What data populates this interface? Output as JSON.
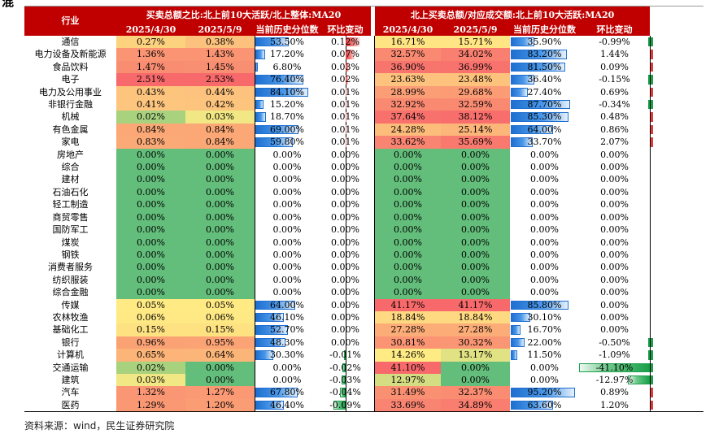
{
  "cut_text": "混",
  "headers": {
    "col_industry": "行业",
    "group_left": "买卖总额之比:北上前10大活跃/北上整体:MA20",
    "group_right": "北上买卖总额/对应成交额:北上前10大活跃:MA20",
    "sub": [
      "2025/4/30",
      "2025/5/9",
      "当前历史分位数",
      "环比变动"
    ]
  },
  "colors": {
    "header_bg": "#c00000",
    "green": "#63be7b",
    "yellow": "#ffeb84",
    "red": "#f8696b",
    "bar_blue": "#1e6fd0"
  },
  "rows": [
    {
      "name": "通信",
      "a1": "0.27%",
      "a2": "0.38%",
      "a3": "53.50%",
      "a3v": 53.5,
      "a4": "0.12%",
      "a4v": 0.12,
      "b1": "16.71%",
      "b2": "15.71%",
      "b3": "35.90%",
      "b3v": 35.9,
      "b4": "-0.99%",
      "b4v": -0.99,
      "ca1": "#fdd27f",
      "ca2": "#fcc27d",
      "cb1": "#ffe483",
      "cb2": "#ffe583"
    },
    {
      "name": "电力设备及新能源",
      "a1": "1.36%",
      "a2": "1.43%",
      "a3": "17.20%",
      "a3v": 17.2,
      "a4": "0.07%",
      "a4v": 0.07,
      "b1": "32.57%",
      "b2": "34.02%",
      "b3": "83.20%",
      "b3v": 83.2,
      "b4": "1.44%",
      "b4v": 1.44,
      "ca1": "#fa9473",
      "ca2": "#fa9473",
      "cb1": "#f98a71",
      "cb2": "#f98070"
    },
    {
      "name": "食品饮料",
      "a1": "1.47%",
      "a2": "1.45%",
      "a3": "6.80%",
      "a3v": 6.8,
      "a4": "0.03%",
      "a4v": 0.03,
      "b1": "36.90%",
      "b2": "36.99%",
      "b3": "81.50%",
      "b3v": 81.5,
      "b4": "0.09%",
      "b4v": 0.09,
      "ca1": "#f98d72",
      "ca2": "#f98f72",
      "cb1": "#f8756d",
      "cb2": "#f8736d"
    },
    {
      "name": "电子",
      "a1": "2.51%",
      "a2": "2.53%",
      "a3": "76.40%",
      "a3v": 76.4,
      "a4": "0.02%",
      "a4v": 0.02,
      "b1": "23.63%",
      "b2": "23.48%",
      "b3": "36.40%",
      "b3v": 36.4,
      "b4": "-0.15%",
      "b4v": -0.15,
      "ca1": "#f8696b",
      "ca2": "#f8696b",
      "cb1": "#fdc27d",
      "cb2": "#fdc37d"
    },
    {
      "name": "电力及公用事业",
      "a1": "0.43%",
      "a2": "0.44%",
      "a3": "84.10%",
      "a3v": 84.1,
      "a4": "0.01%",
      "a4v": 0.01,
      "b1": "28.99%",
      "b2": "29.68%",
      "b3": "27.40%",
      "b3v": 27.4,
      "b4": "0.69%",
      "b4v": 0.69,
      "ca1": "#fdc47d",
      "ca2": "#fdc27d",
      "cb1": "#fb9e75",
      "cb2": "#fb9c75"
    },
    {
      "name": "非银行金融",
      "a1": "0.41%",
      "a2": "0.42%",
      "a3": "15.20%",
      "a3v": 15.2,
      "a4": "0.01%",
      "a4v": 0.01,
      "b1": "32.92%",
      "b2": "32.59%",
      "b3": "87.70%",
      "b3v": 87.7,
      "b4": "-0.34%",
      "b4v": -0.34,
      "ca1": "#fdc57e",
      "ca2": "#fdc47d",
      "cb1": "#f98971",
      "cb2": "#f98a71"
    },
    {
      "name": "机械",
      "a1": "0.02%",
      "a2": "0.03%",
      "a3": "18.70%",
      "a3v": 18.7,
      "a4": "0.01%",
      "a4v": 0.01,
      "b1": "37.64%",
      "b2": "38.12%",
      "b3": "85.30%",
      "b3v": 85.3,
      "b4": "0.48%",
      "b4v": 0.48,
      "ca1": "#a9d27f",
      "ca2": "#f1e784",
      "cb1": "#f8716c",
      "cb2": "#f86e6c"
    },
    {
      "name": "有色金属",
      "a1": "0.84%",
      "a2": "0.84%",
      "a3": "69.00%",
      "a3v": 69.0,
      "a4": "0.01%",
      "a4v": 0.01,
      "b1": "24.28%",
      "b2": "25.14%",
      "b3": "64.00%",
      "b3v": 64.0,
      "b4": "0.86%",
      "b4v": 0.86,
      "ca1": "#fba876",
      "ca2": "#fba876",
      "cb1": "#fcbd7b",
      "cb2": "#fcb67a"
    },
    {
      "name": "家电",
      "a1": "0.83%",
      "a2": "0.84%",
      "a3": "59.80%",
      "a3v": 59.8,
      "a4": "0.01%",
      "a4v": 0.01,
      "b1": "33.62%",
      "b2": "35.69%",
      "b3": "33.70%",
      "b3v": 33.7,
      "b4": "2.07%",
      "b4v": 2.07,
      "ca1": "#fba976",
      "ca2": "#fba876",
      "cb1": "#f98471",
      "cb2": "#f9796e"
    },
    {
      "name": "房地产",
      "a1": "0.00%",
      "a2": "0.00%",
      "a3": "0.00%",
      "a3v": 0,
      "a4": "0.00%",
      "a4v": 0,
      "b1": "0.00%",
      "b2": "0.00%",
      "b3": "0.00%",
      "b3v": 0,
      "b4": "0.00%",
      "b4v": 0,
      "ca1": "#63be7b",
      "ca2": "#63be7b",
      "cb1": "#63be7b",
      "cb2": "#63be7b"
    },
    {
      "name": "综合",
      "a1": "0.00%",
      "a2": "0.00%",
      "a3": "0.00%",
      "a3v": 0,
      "a4": "0.00%",
      "a4v": 0,
      "b1": "0.00%",
      "b2": "0.00%",
      "b3": "0.00%",
      "b3v": 0,
      "b4": "0.00%",
      "b4v": 0,
      "ca1": "#63be7b",
      "ca2": "#63be7b",
      "cb1": "#63be7b",
      "cb2": "#63be7b"
    },
    {
      "name": "建材",
      "a1": "0.00%",
      "a2": "0.00%",
      "a3": "0.00%",
      "a3v": 0,
      "a4": "0.00%",
      "a4v": 0,
      "b1": "0.00%",
      "b2": "0.00%",
      "b3": "0.00%",
      "b3v": 0,
      "b4": "0.00%",
      "b4v": 0,
      "ca1": "#63be7b",
      "ca2": "#63be7b",
      "cb1": "#63be7b",
      "cb2": "#63be7b"
    },
    {
      "name": "石油石化",
      "a1": "0.00%",
      "a2": "0.00%",
      "a3": "0.00%",
      "a3v": 0,
      "a4": "0.00%",
      "a4v": 0,
      "b1": "0.00%",
      "b2": "0.00%",
      "b3": "0.00%",
      "b3v": 0,
      "b4": "0.00%",
      "b4v": 0,
      "ca1": "#63be7b",
      "ca2": "#63be7b",
      "cb1": "#63be7b",
      "cb2": "#63be7b"
    },
    {
      "name": "轻工制造",
      "a1": "0.00%",
      "a2": "0.00%",
      "a3": "0.00%",
      "a3v": 0,
      "a4": "0.00%",
      "a4v": 0,
      "b1": "0.00%",
      "b2": "0.00%",
      "b3": "0.00%",
      "b3v": 0,
      "b4": "0.00%",
      "b4v": 0,
      "ca1": "#63be7b",
      "ca2": "#63be7b",
      "cb1": "#63be7b",
      "cb2": "#63be7b"
    },
    {
      "name": "商贸零售",
      "a1": "0.00%",
      "a2": "0.00%",
      "a3": "0.00%",
      "a3v": 0,
      "a4": "0.00%",
      "a4v": 0,
      "b1": "0.00%",
      "b2": "0.00%",
      "b3": "0.00%",
      "b3v": 0,
      "b4": "0.00%",
      "b4v": 0,
      "ca1": "#63be7b",
      "ca2": "#63be7b",
      "cb1": "#63be7b",
      "cb2": "#63be7b"
    },
    {
      "name": "国防军工",
      "a1": "0.00%",
      "a2": "0.00%",
      "a3": "0.00%",
      "a3v": 0,
      "a4": "0.00%",
      "a4v": 0,
      "b1": "0.00%",
      "b2": "0.00%",
      "b3": "0.00%",
      "b3v": 0,
      "b4": "0.00%",
      "b4v": 0,
      "ca1": "#63be7b",
      "ca2": "#63be7b",
      "cb1": "#63be7b",
      "cb2": "#63be7b"
    },
    {
      "name": "煤炭",
      "a1": "0.00%",
      "a2": "0.00%",
      "a3": "0.00%",
      "a3v": 0,
      "a4": "0.00%",
      "a4v": 0,
      "b1": "0.00%",
      "b2": "0.00%",
      "b3": "0.00%",
      "b3v": 0,
      "b4": "0.00%",
      "b4v": 0,
      "ca1": "#63be7b",
      "ca2": "#63be7b",
      "cb1": "#63be7b",
      "cb2": "#63be7b"
    },
    {
      "name": "钢铁",
      "a1": "0.00%",
      "a2": "0.00%",
      "a3": "0.00%",
      "a3v": 0,
      "a4": "0.00%",
      "a4v": 0,
      "b1": "0.00%",
      "b2": "0.00%",
      "b3": "0.00%",
      "b3v": 0,
      "b4": "0.00%",
      "b4v": 0,
      "ca1": "#63be7b",
      "ca2": "#63be7b",
      "cb1": "#63be7b",
      "cb2": "#63be7b"
    },
    {
      "name": "消费者服务",
      "a1": "0.00%",
      "a2": "0.00%",
      "a3": "0.00%",
      "a3v": 0,
      "a4": "0.00%",
      "a4v": 0,
      "b1": "0.00%",
      "b2": "0.00%",
      "b3": "0.00%",
      "b3v": 0,
      "b4": "0.00%",
      "b4v": 0,
      "ca1": "#63be7b",
      "ca2": "#63be7b",
      "cb1": "#63be7b",
      "cb2": "#63be7b"
    },
    {
      "name": "纺织服装",
      "a1": "0.00%",
      "a2": "0.00%",
      "a3": "0.00%",
      "a3v": 0,
      "a4": "0.00%",
      "a4v": 0,
      "b1": "0.00%",
      "b2": "0.00%",
      "b3": "0.00%",
      "b3v": 0,
      "b4": "0.00%",
      "b4v": 0,
      "ca1": "#63be7b",
      "ca2": "#63be7b",
      "cb1": "#63be7b",
      "cb2": "#63be7b"
    },
    {
      "name": "综合金融",
      "a1": "0.00%",
      "a2": "0.00%",
      "a3": "0.00%",
      "a3v": 0,
      "a4": "0.00%",
      "a4v": 0,
      "b1": "0.00%",
      "b2": "0.00%",
      "b3": "0.00%",
      "b3v": 0,
      "b4": "0.00%",
      "b4v": 0,
      "ca1": "#63be7b",
      "ca2": "#63be7b",
      "cb1": "#63be7b",
      "cb2": "#63be7b"
    },
    {
      "name": "传媒",
      "a1": "0.05%",
      "a2": "0.05%",
      "a3": "64.00%",
      "a3v": 64.0,
      "a4": "0.00%",
      "a4v": 0,
      "b1": "41.17%",
      "b2": "41.17%",
      "b3": "85.80%",
      "b3v": 85.8,
      "b4": "0.00%",
      "b4v": 0,
      "ca1": "#ffea84",
      "ca2": "#ffea84",
      "cb1": "#f8696b",
      "cb2": "#f8696b"
    },
    {
      "name": "农林牧渔",
      "a1": "0.06%",
      "a2": "0.06%",
      "a3": "46.10%",
      "a3v": 46.1,
      "a4": "0.00%",
      "a4v": 0,
      "b1": "18.84%",
      "b2": "18.84%",
      "b3": "30.10%",
      "b3v": 30.1,
      "b4": "0.00%",
      "b4v": 0,
      "ca1": "#ffe984",
      "ca2": "#ffe984",
      "cb1": "#fed981",
      "cb2": "#fed981"
    },
    {
      "name": "基础化工",
      "a1": "0.15%",
      "a2": "0.15%",
      "a3": "52.70%",
      "a3v": 52.7,
      "a4": "0.00%",
      "a4v": 0,
      "b1": "27.28%",
      "b2": "27.28%",
      "b3": "16.70%",
      "b3v": 16.7,
      "b4": "0.00%",
      "b4v": 0,
      "ca1": "#fee282",
      "ca2": "#fee282",
      "cb1": "#fcac77",
      "cb2": "#fcac77"
    },
    {
      "name": "银行",
      "a1": "0.96%",
      "a2": "0.95%",
      "a3": "48.30%",
      "a3v": 48.3,
      "a4": "0.00%",
      "a4v": 0,
      "b1": "30.81%",
      "b2": "30.32%",
      "b3": "22.00%",
      "b3v": 22.0,
      "b4": "-0.50%",
      "b4v": -0.5,
      "ca1": "#fba275",
      "ca2": "#fba375",
      "cb1": "#fa9473",
      "cb2": "#fa9674"
    },
    {
      "name": "计算机",
      "a1": "0.65%",
      "a2": "0.64%",
      "a3": "30.30%",
      "a3v": 30.3,
      "a4": "-0.01%",
      "a4v": -0.01,
      "b1": "14.26%",
      "b2": "13.17%",
      "b3": "11.50%",
      "b3v": 11.5,
      "b4": "-1.09%",
      "b4v": -1.09,
      "ca1": "#fcb479",
      "ca2": "#fcb579",
      "cb1": "#ffeb84",
      "cb2": "#e1e283"
    },
    {
      "name": "交通运输",
      "a1": "0.02%",
      "a2": "0.00%",
      "a3": "0.00%",
      "a3v": 0,
      "a4": "-0.02%",
      "a4v": -0.02,
      "b1": "41.10%",
      "b2": "0.00%",
      "b3": "0.00%",
      "b3v": 0,
      "b4": "-41.10%",
      "b4v": -41.1,
      "ca1": "#a9d27f",
      "ca2": "#63be7b",
      "cb1": "#f8696b",
      "cb2": "#63be7b"
    },
    {
      "name": "建筑",
      "a1": "0.03%",
      "a2": "0.00%",
      "a3": "0.00%",
      "a3v": 0,
      "a4": "-0.03%",
      "a4v": -0.03,
      "b1": "12.97%",
      "b2": "0.00%",
      "b3": "0.00%",
      "b3v": 0,
      "b4": "-12.97%",
      "b4v": -12.97,
      "ca1": "#f1e784",
      "ca2": "#63be7b",
      "cb1": "#d4dd82",
      "cb2": "#63be7b"
    },
    {
      "name": "汽车",
      "a1": "1.32%",
      "a2": "1.27%",
      "a3": "67.80%",
      "a3v": 67.8,
      "a4": "-0.04%",
      "a4v": -0.04,
      "b1": "31.49%",
      "b2": "32.37%",
      "b3": "95.20%",
      "b3v": 95.2,
      "b4": "0.89%",
      "b4v": 0.89,
      "ca1": "#fa9674",
      "ca2": "#fa9974",
      "cb1": "#fa9072",
      "cb2": "#fa8c72"
    },
    {
      "name": "医药",
      "a1": "1.29%",
      "a2": "1.20%",
      "a3": "46.40%",
      "a3v": 46.4,
      "a4": "-0.09%",
      "a4v": -0.09,
      "b1": "33.69%",
      "b2": "34.89%",
      "b3": "63.60%",
      "b3v": 63.6,
      "b4": "1.20%",
      "b4v": 1.2,
      "ca1": "#fa9874",
      "ca2": "#fa9c74",
      "cb1": "#f98471",
      "cb2": "#f97e6f"
    }
  ],
  "source": "资料来源：wind，民生证券研究院"
}
